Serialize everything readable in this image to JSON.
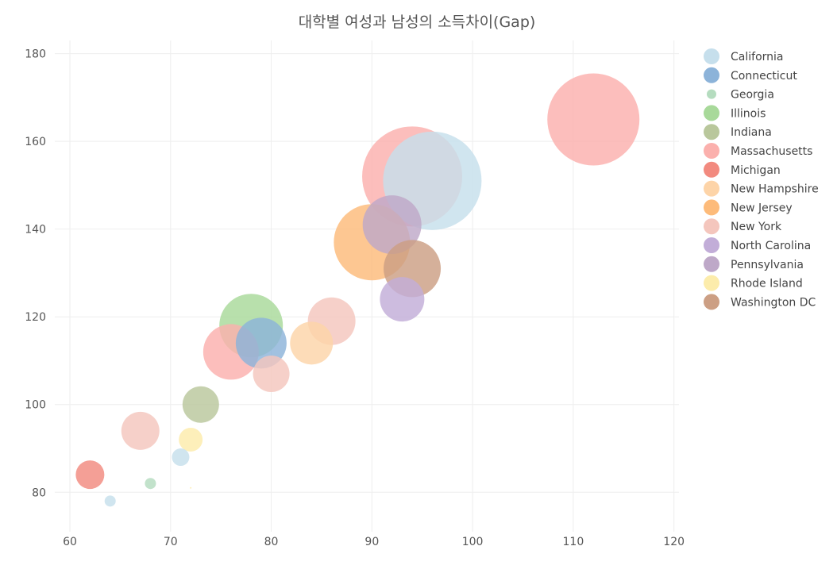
{
  "chart_data": {
    "type": "scatter",
    "title": "대학별 여성과 남성의 소득차이(Gap)",
    "xlabel": "",
    "ylabel": "",
    "xlim": [
      58.5,
      120.5
    ],
    "ylim": [
      71,
      183
    ],
    "x_ticks": [
      60,
      70,
      80,
      90,
      100,
      110,
      120
    ],
    "y_ticks": [
      80,
      100,
      120,
      140,
      160,
      180
    ],
    "grid": true,
    "legend_position": "right",
    "series": [
      {
        "name": "California",
        "color": "#c6dfec",
        "points": [
          {
            "x": 96,
            "y": 151,
            "size": 62
          },
          {
            "x": 71,
            "y": 88,
            "size": 11
          },
          {
            "x": 64,
            "y": 78,
            "size": 7
          }
        ]
      },
      {
        "name": "Connecticut",
        "color": "#8cb3d9",
        "points": [
          {
            "x": 79,
            "y": 114,
            "size": 32
          }
        ]
      },
      {
        "name": "Georgia",
        "color": "#b5dcbf",
        "points": [
          {
            "x": 68,
            "y": 82,
            "size": 7
          }
        ]
      },
      {
        "name": "Illinois",
        "color": "#a8d99a",
        "points": [
          {
            "x": 78,
            "y": 118,
            "size": 40
          }
        ]
      },
      {
        "name": "Indiana",
        "color": "#b9c79c",
        "points": [
          {
            "x": 73,
            "y": 100,
            "size": 23
          }
        ]
      },
      {
        "name": "Massachusetts",
        "color": "#fbb0ad",
        "points": [
          {
            "x": 112,
            "y": 165,
            "size": 58
          },
          {
            "x": 94,
            "y": 152,
            "size": 63
          },
          {
            "x": 76,
            "y": 112,
            "size": 35
          }
        ]
      },
      {
        "name": "Michigan",
        "color": "#f28a7f",
        "points": [
          {
            "x": 62,
            "y": 84,
            "size": 18
          }
        ]
      },
      {
        "name": "New Hampshire",
        "color": "#fdd4a8",
        "points": [
          {
            "x": 84,
            "y": 114,
            "size": 27
          }
        ]
      },
      {
        "name": "New Jersey",
        "color": "#fdbb7a",
        "points": [
          {
            "x": 90,
            "y": 137,
            "size": 48
          }
        ]
      },
      {
        "name": "New York",
        "color": "#f4c6bd",
        "points": [
          {
            "x": 86,
            "y": 119,
            "size": 30
          },
          {
            "x": 80,
            "y": 107,
            "size": 23
          },
          {
            "x": 67,
            "y": 94,
            "size": 24
          }
        ]
      },
      {
        "name": "North Carolina",
        "color": "#c2add8",
        "points": [
          {
            "x": 93,
            "y": 124,
            "size": 28
          }
        ]
      },
      {
        "name": "Pennsylvania",
        "color": "#bea8c8",
        "points": [
          {
            "x": 92,
            "y": 141,
            "size": 37
          }
        ]
      },
      {
        "name": "Rhode Island",
        "color": "#fcecab",
        "points": [
          {
            "x": 72,
            "y": 92,
            "size": 15
          },
          {
            "x": 72,
            "y": 81,
            "size": 1
          }
        ]
      },
      {
        "name": "Washington DC",
        "color": "#cc9f84",
        "points": [
          {
            "x": 94,
            "y": 131,
            "size": 36
          }
        ]
      }
    ]
  }
}
